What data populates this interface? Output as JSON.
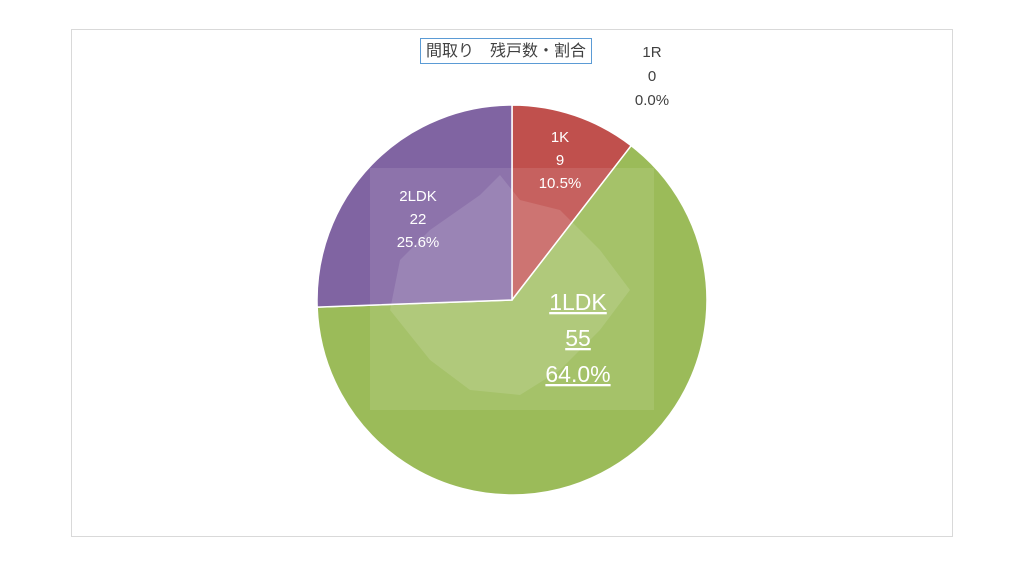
{
  "chart_data": {
    "type": "pie",
    "title": "間取り　残戸数・割合",
    "slices": [
      {
        "name": "1R",
        "value": 0,
        "percent": "0.0%",
        "color": "#4472c4"
      },
      {
        "name": "1K",
        "value": 9,
        "percent": "10.5%",
        "color": "#c0504d"
      },
      {
        "name": "1LDK",
        "value": 55,
        "percent": "64.0%",
        "color": "#9bbb59"
      },
      {
        "name": "2LDK",
        "value": 22,
        "percent": "25.6%",
        "color": "#8064a2"
      }
    ],
    "start_angle": "12 o'clock",
    "direction": "clockwise"
  }
}
